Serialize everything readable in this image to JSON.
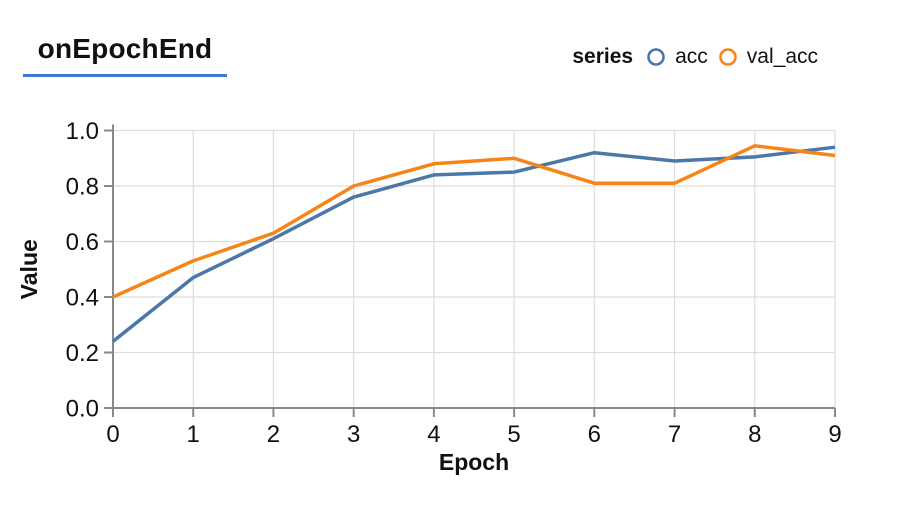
{
  "header": {
    "title": "onEpochEnd",
    "legend_title": "series"
  },
  "colors": {
    "title_underline": "#3a7bd5",
    "grid": "#dddddd",
    "axis_domain": "#888888",
    "tick_text": "#111111",
    "background": "#ffffff",
    "series_acc": "#4c78a8",
    "series_val_acc": "#f58518"
  },
  "chart_data": {
    "type": "line",
    "title": "onEpochEnd",
    "xlabel": "Epoch",
    "ylabel": "Value",
    "x": [
      0,
      1,
      2,
      3,
      4,
      5,
      6,
      7,
      8,
      9
    ],
    "series": [
      {
        "name": "acc",
        "color": "#4c78a8",
        "values": [
          0.24,
          0.47,
          0.61,
          0.76,
          0.84,
          0.85,
          0.92,
          0.89,
          0.905,
          0.94
        ]
      },
      {
        "name": "val_acc",
        "color": "#f58518",
        "values": [
          0.4,
          0.53,
          0.63,
          0.8,
          0.88,
          0.9,
          0.81,
          0.81,
          0.945,
          0.91
        ]
      }
    ],
    "xlim": [
      0,
      9
    ],
    "ylim": [
      0,
      1
    ],
    "x_ticks": [
      0,
      1,
      2,
      3,
      4,
      5,
      6,
      7,
      8,
      9
    ],
    "y_ticks": [
      0,
      0.2,
      0.4,
      0.6,
      0.8,
      1.0
    ],
    "grid": true,
    "legend_position": "top-right"
  }
}
